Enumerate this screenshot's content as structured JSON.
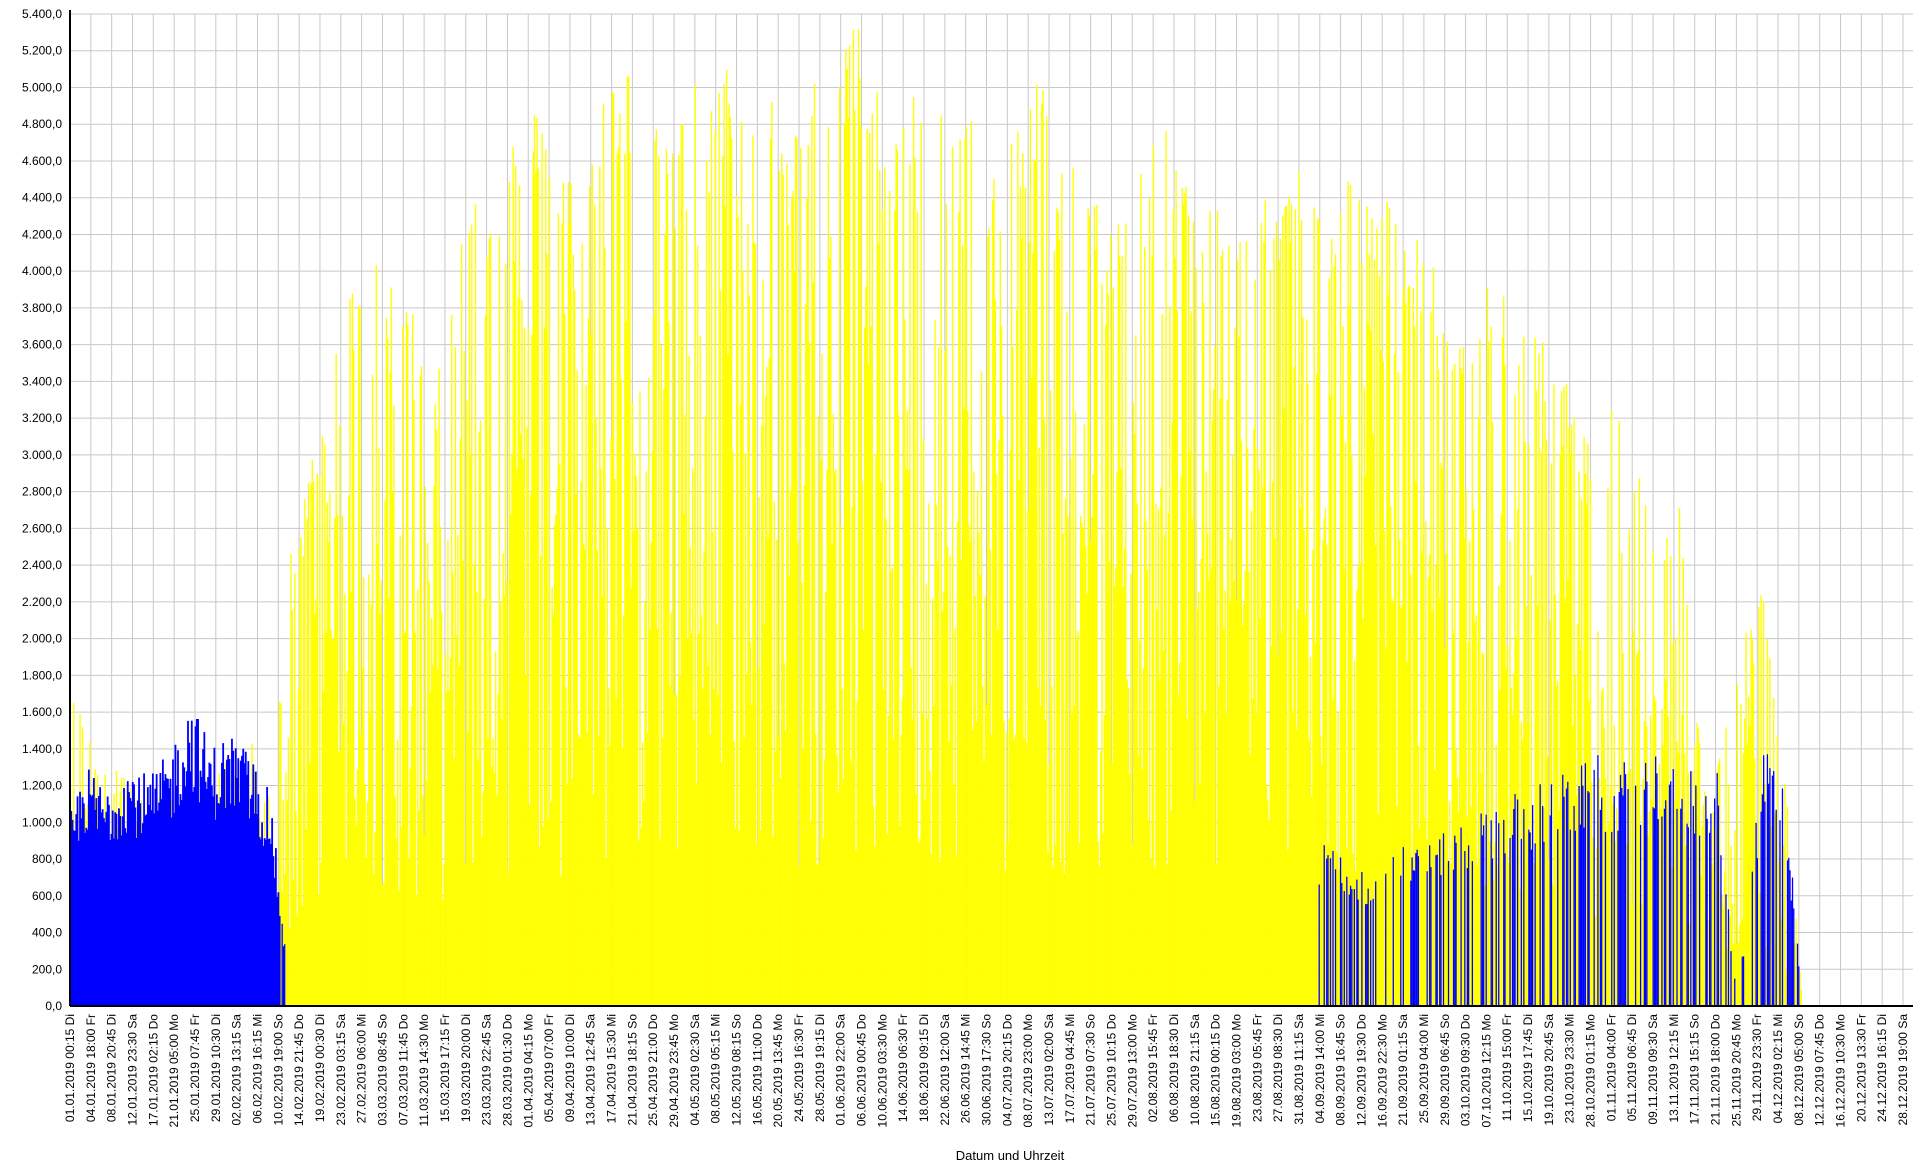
{
  "chart_data": {
    "type": "bar",
    "title": "",
    "xlabel": "Datum und Uhrzeit",
    "ylabel": "",
    "ylim": [
      0,
      5400
    ],
    "y_ticks": [
      "0,0",
      "200,0",
      "400,0",
      "600,0",
      "800,0",
      "1.000,0",
      "1.200,0",
      "1.400,0",
      "1.600,0",
      "1.800,0",
      "2.000,0",
      "2.200,0",
      "2.400,0",
      "2.600,0",
      "2.800,0",
      "3.000,0",
      "3.200,0",
      "3.400,0",
      "3.600,0",
      "3.800,0",
      "4.000,0",
      "4.200,0",
      "4.400,0",
      "4.600,0",
      "4.800,0",
      "5.000,0",
      "5.200,0",
      "5.400,0"
    ],
    "grid": true,
    "x_tick_labels": [
      "01.01.2019 00:15 Di",
      "04.01.2019 18:00 Fr",
      "08.01.2019 20:45 Di",
      "12.01.2019 23:30 Sa",
      "17.01.2019 02:15 Do",
      "21.01.2019 05:00 Mo",
      "25.01.2019 07:45 Fr",
      "29.01.2019 10:30 Di",
      "02.02.2019 13:15 Sa",
      "06.02.2019 16:15 Mi",
      "10.02.2019 19:00 So",
      "14.02.2019 21:45 Do",
      "19.02.2019 00:30 Di",
      "23.02.2019 03:15 Sa",
      "27.02.2019 06:00 Mi",
      "03.03.2019 08:45 So",
      "07.03.2019 11:45 Do",
      "11.03.2019 14:30 Mo",
      "15.03.2019 17:15 Fr",
      "19.03.2019 20:00 Di",
      "23.03.2019 22:45 Sa",
      "28.03.2019 01:30 Do",
      "01.04.2019 04:15 Mo",
      "05.04.2019 07:00 Fr",
      "09.04.2019 10:00 Di",
      "13.04.2019 12:45 Sa",
      "17.04.2019 15:30 Mi",
      "21.04.2019 18:15 So",
      "25.04.2019 21:00 Do",
      "29.04.2019 23:45 Mo",
      "04.05.2019 02:30 Sa",
      "08.05.2019 05:15 Mi",
      "12.05.2019 08:15 So",
      "16.05.2019 11:00 Do",
      "20.05.2019 13:45 Mo",
      "24.05.2019 16:30 Fr",
      "28.05.2019 19:15 Di",
      "01.06.2019 22:00 Sa",
      "06.06.2019 00:45 Do",
      "10.06.2019 03:30 Mo",
      "14.06.2019 06:30 Fr",
      "18.06.2019 09:15 Di",
      "22.06.2019 12:00 Sa",
      "26.06.2019 14:45 Mi",
      "30.06.2019 17:30 So",
      "04.07.2019 20:15 Do",
      "08.07.2019 23:00 Mo",
      "13.07.2019 02:00 Sa",
      "17.07.2019 04:45 Mi",
      "21.07.2019 07:30 So",
      "25.07.2019 10:15 Do",
      "29.07.2019 13:00 Mo",
      "02.08.2019 15:45 Fr",
      "06.08.2019 18:30 Di",
      "10.08.2019 21:15 Sa",
      "15.08.2019 00:15 Do",
      "19.08.2019 03:00 Mo",
      "23.08.2019 05:45 Fr",
      "27.08.2019 08:30 Di",
      "31.08.2019 11:15 Sa",
      "04.09.2019 14:00 Mi",
      "08.09.2019 16:45 So",
      "12.09.2019 19:30 Do",
      "16.09.2019 22:30 Mo",
      "21.09.2019 01:15 Sa",
      "25.09.2019 04:00 Mi",
      "29.09.2019 06:45 So",
      "03.10.2019 09:30 Do",
      "07.10.2019 12:15 Mo",
      "11.10.2019 15:00 Fr",
      "15.10.2019 17:45 Di",
      "19.10.2019 20:45 Sa",
      "23.10.2019 23:30 Mi",
      "28.10.2019 01:15 Mo",
      "01.11.2019 04:00 Fr",
      "05.11.2019 06:45 Di",
      "09.11.2019 09:30 Sa",
      "13.11.2019 12:15 Mi",
      "17.11.2019 15:15 So",
      "21.11.2019 18:00 Do",
      "25.11.2019 20:45 Mo",
      "29.11.2019 23:30 Fr",
      "04.12.2019 02:15 Mi",
      "08.12.2019 05:00 So",
      "12.12.2019 07:45 Do",
      "16.12.2019 10:30 Mo",
      "20.12.2019 13:30 Fr",
      "24.12.2019 16:15 Di",
      "28.12.2019 19:00 Sa"
    ],
    "series": [
      {
        "color": "#ffff00",
        "envelope_x": [
          "01.01.2019",
          "14.01.2019",
          "28.01.2019",
          "06.02.2019",
          "10.02.2019",
          "14.02.2019",
          "18.02.2019",
          "22.02.2019",
          "27.02.2019",
          "03.03.2019",
          "07.03.2019",
          "11.03.2019",
          "15.03.2019",
          "19.03.2019",
          "23.03.2019",
          "28.03.2019",
          "01.04.2019",
          "05.04.2019",
          "09.04.2019",
          "13.04.2019",
          "17.04.2019",
          "21.04.2019",
          "25.04.2019",
          "29.04.2019",
          "04.05.2019",
          "08.05.2019",
          "12.05.2019",
          "16.05.2019",
          "20.05.2019",
          "24.05.2019",
          "28.05.2019",
          "01.06.2019",
          "06.06.2019",
          "10.06.2019",
          "14.06.2019",
          "18.06.2019",
          "22.06.2019",
          "26.06.2019",
          "30.06.2019",
          "04.07.2019",
          "08.07.2019",
          "13.07.2019",
          "17.07.2019",
          "21.07.2019",
          "25.07.2019",
          "29.07.2019",
          "02.08.2019",
          "06.08.2019",
          "10.08.2019",
          "15.08.2019",
          "19.08.2019",
          "23.08.2019",
          "27.08.2019",
          "31.08.2019",
          "04.09.2019",
          "08.09.2019",
          "12.09.2019",
          "16.09.2019",
          "21.09.2019",
          "25.09.2019",
          "29.09.2019",
          "03.10.2019",
          "07.10.2019",
          "11.10.2019",
          "15.10.2019",
          "19.10.2019",
          "23.10.2019",
          "28.10.2019",
          "01.11.2019",
          "05.11.2019",
          "09.11.2019",
          "13.11.2019",
          "17.11.2019",
          "21.11.2019",
          "25.11.2019",
          "29.11.2019",
          "04.12.2019",
          "08.12.2019",
          "12.12.2019",
          "16.12.2019",
          "20.12.2019",
          "24.12.2019",
          "28.12.2019"
        ],
        "envelope_y": [
          1700,
          1200,
          1250,
          1450,
          1100,
          2500,
          3000,
          3650,
          4000,
          4300,
          3900,
          3800,
          3500,
          4200,
          4550,
          4650,
          4870,
          4900,
          4700,
          4400,
          5080,
          5100,
          5200,
          4600,
          5130,
          4900,
          5150,
          5250,
          5030,
          4800,
          5060,
          5080,
          5430,
          5100,
          4900,
          5030,
          4950,
          5080,
          5060,
          4850,
          4800,
          5130,
          4700,
          4500,
          4450,
          4300,
          4650,
          4800,
          4700,
          4500,
          4400,
          4200,
          4470,
          4400,
          4750,
          4300,
          4550,
          4500,
          4550,
          4200,
          4150,
          3550,
          3650,
          4070,
          3750,
          3700,
          3570,
          3270,
          3250,
          3300,
          3050,
          2400,
          2900,
          1600,
          1300,
          1980,
          2270,
          1460,
          30,
          20,
          20,
          20,
          20
        ]
      },
      {
        "color": "#0000ff",
        "envelope_x": [
          "01.01.2019",
          "04.01.2019",
          "08.01.2019",
          "12.01.2019",
          "17.01.2019",
          "21.01.2019",
          "25.01.2019",
          "29.01.2019",
          "02.02.2019",
          "06.02.2019",
          "10.02.2019",
          "14.02.2019",
          "08.09.2019",
          "16.09.2019",
          "25.09.2019",
          "03.10.2019",
          "11.10.2019",
          "19.10.2019",
          "28.10.2019",
          "01.11.2019",
          "05.11.2019",
          "09.11.2019",
          "13.11.2019",
          "17.11.2019",
          "21.11.2019",
          "25.11.2019",
          "29.11.2019",
          "04.12.2019",
          "08.12.2019",
          "12.12.2019"
        ],
        "envelope_y": [
          1050,
          1320,
          1200,
          1350,
          1250,
          1400,
          1690,
          1420,
          1500,
          1380,
          1150,
          0,
          900,
          750,
          900,
          950,
          1120,
          1200,
          1300,
          1370,
          1330,
          1350,
          1410,
          1350,
          1300,
          1270,
          0,
          1420,
          1430,
          0
        ]
      }
    ]
  }
}
